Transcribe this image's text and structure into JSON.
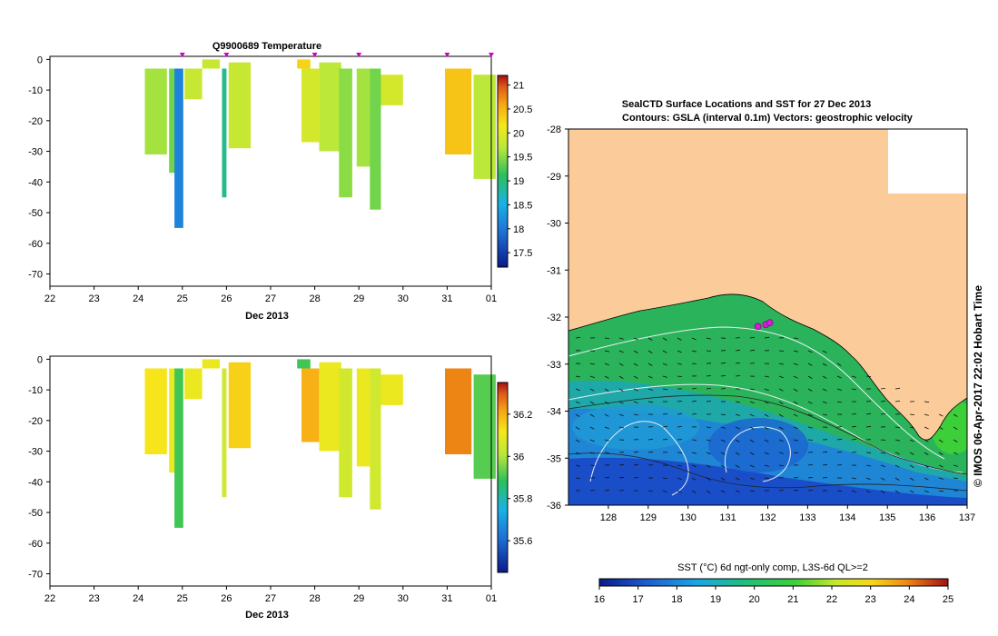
{
  "chart_data": [
    {
      "type": "heatmap",
      "title": "Q9900689  Temperature",
      "xlabel": "Dec 2013",
      "x_ticks": [
        "22",
        "23",
        "24",
        "25",
        "26",
        "27",
        "28",
        "29",
        "30",
        "31",
        "01"
      ],
      "y_ticks": [
        "0",
        "-10",
        "-20",
        "-30",
        "-40",
        "-50",
        "-60",
        "-70"
      ],
      "xlim": [
        22,
        32
      ],
      "ylim": [
        -74,
        1
      ],
      "colorbar": {
        "ticks": [
          "21",
          "20.5",
          "20",
          "19.5",
          "19",
          "18.5",
          "18",
          "17.5"
        ],
        "range": [
          17.2,
          21.2
        ]
      },
      "profile_markers_x": [
        25.0,
        26.0,
        28.0,
        29.0,
        31.0,
        32.0
      ],
      "profiles": [
        {
          "x": 24.15,
          "w": 0.5,
          "bottom": -31,
          "top": -3,
          "value": 19.6
        },
        {
          "x": 24.7,
          "w": 0.25,
          "bottom": -37,
          "top": -3,
          "value": 19.4
        },
        {
          "x": 24.82,
          "w": 0.2,
          "bottom": -55,
          "top": -3,
          "value": 18.1
        },
        {
          "x": 25.05,
          "w": 0.4,
          "bottom": -13,
          "top": -3,
          "value": 19.8
        },
        {
          "x": 25.45,
          "w": 0.4,
          "bottom": -3,
          "top": 0,
          "value": 19.8
        },
        {
          "x": 25.9,
          "w": 0.1,
          "bottom": -45,
          "top": -3,
          "value": 18.9
        },
        {
          "x": 26.05,
          "w": 0.5,
          "bottom": -29,
          "top": -1,
          "value": 19.8
        },
        {
          "x": 27.6,
          "w": 0.3,
          "bottom": -3,
          "top": 0,
          "value": 20.3
        },
        {
          "x": 27.7,
          "w": 0.4,
          "bottom": -27,
          "top": -3,
          "value": 19.9
        },
        {
          "x": 28.1,
          "w": 0.5,
          "bottom": -30,
          "top": -1,
          "value": 19.7
        },
        {
          "x": 28.55,
          "w": 0.3,
          "bottom": -45,
          "top": -3,
          "value": 19.5
        },
        {
          "x": 28.95,
          "w": 0.3,
          "bottom": -35,
          "top": -3,
          "value": 19.6
        },
        {
          "x": 29.25,
          "w": 0.25,
          "bottom": -49,
          "top": -3,
          "value": 19.4
        },
        {
          "x": 29.5,
          "w": 0.5,
          "bottom": -15,
          "top": -5,
          "value": 19.9
        },
        {
          "x": 30.95,
          "w": 0.6,
          "bottom": -31,
          "top": -3,
          "value": 20.4
        },
        {
          "x": 31.6,
          "w": 0.5,
          "bottom": -39,
          "top": -5,
          "value": 19.7
        }
      ]
    },
    {
      "type": "heatmap",
      "title": "",
      "xlabel": "Dec 2013",
      "x_ticks": [
        "22",
        "23",
        "24",
        "25",
        "26",
        "27",
        "28",
        "29",
        "30",
        "31",
        "01"
      ],
      "y_ticks": [
        "0",
        "-10",
        "-20",
        "-30",
        "-40",
        "-50",
        "-60",
        "-70"
      ],
      "xlim": [
        22,
        32
      ],
      "ylim": [
        -74,
        1
      ],
      "colorbar": {
        "ticks": [
          "36.2",
          "36",
          "35.8",
          "35.6"
        ],
        "range": [
          35.45,
          36.35
        ]
      },
      "profiles": [
        {
          "x": 24.15,
          "w": 0.5,
          "bottom": -31,
          "top": -3,
          "value": 36.12
        },
        {
          "x": 24.7,
          "w": 0.25,
          "bottom": -37,
          "top": -3,
          "value": 36.1
        },
        {
          "x": 24.82,
          "w": 0.2,
          "bottom": -55,
          "top": -3,
          "value": 35.9
        },
        {
          "x": 25.05,
          "w": 0.4,
          "bottom": -13,
          "top": -3,
          "value": 36.1
        },
        {
          "x": 25.45,
          "w": 0.4,
          "bottom": -3,
          "top": 0,
          "value": 36.1
        },
        {
          "x": 25.9,
          "w": 0.1,
          "bottom": -45,
          "top": -3,
          "value": 36.05
        },
        {
          "x": 26.05,
          "w": 0.5,
          "bottom": -29,
          "top": -1,
          "value": 36.15
        },
        {
          "x": 27.6,
          "w": 0.3,
          "bottom": -3,
          "top": 0,
          "value": 35.9
        },
        {
          "x": 27.7,
          "w": 0.4,
          "bottom": -27,
          "top": -3,
          "value": 36.2
        },
        {
          "x": 28.1,
          "w": 0.5,
          "bottom": -30,
          "top": -1,
          "value": 36.1
        },
        {
          "x": 28.55,
          "w": 0.3,
          "bottom": -45,
          "top": -3,
          "value": 36.05
        },
        {
          "x": 28.95,
          "w": 0.3,
          "bottom": -35,
          "top": -3,
          "value": 36.1
        },
        {
          "x": 29.25,
          "w": 0.25,
          "bottom": -49,
          "top": -3,
          "value": 36.05
        },
        {
          "x": 29.5,
          "w": 0.5,
          "bottom": -15,
          "top": -5,
          "value": 36.1
        },
        {
          "x": 30.95,
          "w": 0.6,
          "bottom": -31,
          "top": -3,
          "value": 36.25
        },
        {
          "x": 31.6,
          "w": 0.5,
          "bottom": -39,
          "top": -5,
          "value": 35.92
        }
      ]
    },
    {
      "type": "heatmap",
      "title_line1": "SealCTD Surface Locations and SST for 27 Dec 2013",
      "title_line2": "Contours: GSLA (interval 0.1m) Vectors: geostrophic velocity",
      "side_label": "© IMOS 06-Apr-2017 22:02 Hobart Time",
      "x_ticks": [
        "128",
        "129",
        "130",
        "131",
        "132",
        "133",
        "134",
        "135",
        "136",
        "137"
      ],
      "y_ticks": [
        "-28",
        "-29",
        "-30",
        "-31",
        "-32",
        "-33",
        "-34",
        "-35",
        "-36"
      ],
      "xlim": [
        127,
        137
      ],
      "ylim": [
        -36,
        -28
      ],
      "colorbar": {
        "label": "SST (°C) 6d ngt-only comp, L3S-6d QL>=2",
        "ticks": [
          "16",
          "17",
          "18",
          "19",
          "20",
          "21",
          "22",
          "23",
          "24",
          "25"
        ],
        "range": [
          16,
          25
        ]
      },
      "seal_locations": [
        {
          "lon": 131.75,
          "lat": -32.2
        },
        {
          "lon": 131.95,
          "lat": -32.16
        },
        {
          "lon": 132.05,
          "lat": -32.12
        }
      ]
    }
  ]
}
